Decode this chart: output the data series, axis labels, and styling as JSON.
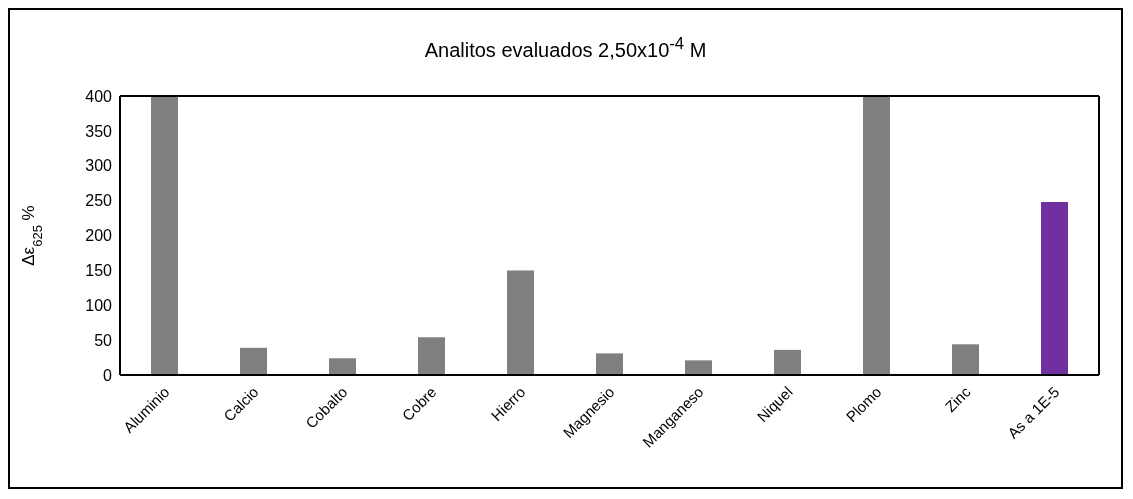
{
  "chart_data": {
    "type": "bar",
    "title": "Analitos evaluados 2,50x10$^{-4}$ M",
    "ylabel": "Δε$_{625}$ %",
    "categories": [
      "Aluminio",
      "Calcio",
      "Cobalto",
      "Cobre",
      "Hierro",
      "Magnesio",
      "Manganeso",
      "Niquel",
      "Plomo",
      "Zinc",
      "As a 1E-5"
    ],
    "values": [
      400,
      39,
      24,
      54,
      150,
      31,
      21,
      36,
      400,
      44,
      248
    ],
    "colors": [
      "#7f7f7f",
      "#7f7f7f",
      "#7f7f7f",
      "#7f7f7f",
      "#7f7f7f",
      "#7f7f7f",
      "#7f7f7f",
      "#7f7f7f",
      "#7f7f7f",
      "#7f7f7f",
      "#7030a0"
    ],
    "ylim": [
      0,
      400
    ],
    "yticks": [
      0,
      50,
      100,
      150,
      200,
      250,
      300,
      350,
      400
    ],
    "grid": false,
    "legend": false
  }
}
